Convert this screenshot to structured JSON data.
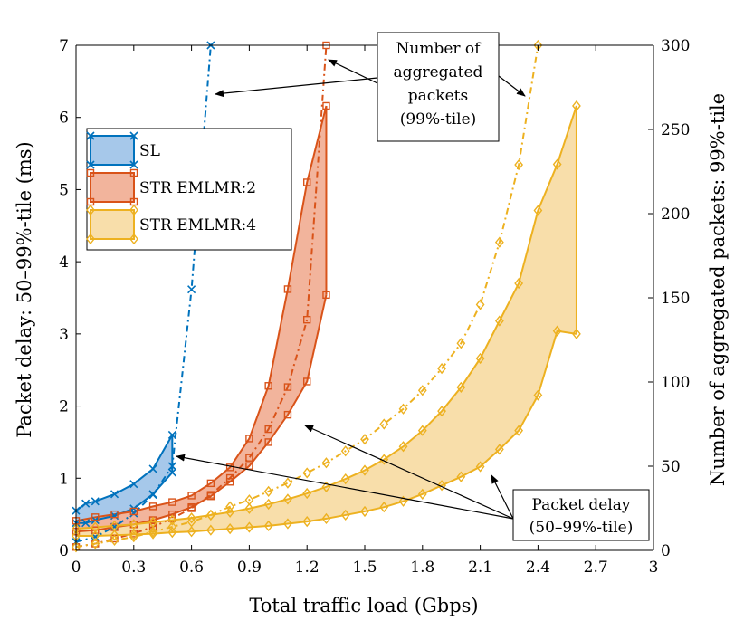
{
  "chart_data": {
    "type": "line",
    "xlabel": "Total traffic load (Gbps)",
    "ylabel_left": "Packet delay: 50–99%-tile (ms)",
    "ylabel_right": "Number of aggregated packets: 99%-tile",
    "xlim": [
      0,
      3
    ],
    "ylim_left": [
      0,
      7
    ],
    "ylim_right": [
      0,
      300
    ],
    "xticks": [
      "0",
      "0.3",
      "0.6",
      "0.9",
      "1.2",
      "1.5",
      "1.8",
      "2.1",
      "2.4",
      "2.7",
      "3"
    ],
    "yticks_left": [
      "0",
      "1",
      "2",
      "3",
      "4",
      "5",
      "6",
      "7"
    ],
    "yticks_right": [
      "0",
      "50",
      "100",
      "150",
      "200",
      "250",
      "300"
    ],
    "legend": [
      {
        "name": "SL",
        "color": "#0072bd",
        "fill": "#a6c8ea",
        "marker": "x"
      },
      {
        "name": "STR EMLMR:2",
        "color": "#d95319",
        "fill": "#f2b49c",
        "marker": "square"
      },
      {
        "name": "STR EMLMR:4",
        "color": "#edb120",
        "fill": "#f8deaa",
        "marker": "diamond"
      }
    ],
    "series": [
      {
        "name": "SL",
        "x": [
          0,
          0.05,
          0.1,
          0.2,
          0.3,
          0.4,
          0.5
        ],
        "delay_p50": [
          0.38,
          0.38,
          0.42,
          0.48,
          0.58,
          0.78,
          1.08
        ],
        "delay_p99": [
          0.55,
          0.65,
          0.68,
          0.78,
          0.92,
          1.13,
          1.6
        ],
        "agg_p99_x": [
          0,
          0.1,
          0.2,
          0.3,
          0.4,
          0.5,
          0.6,
          0.7
        ],
        "agg_p99": [
          5,
          8,
          14,
          22,
          33,
          50,
          155,
          300
        ]
      },
      {
        "name": "STR EMLMR:2",
        "x": [
          0,
          0.1,
          0.2,
          0.3,
          0.4,
          0.5,
          0.6,
          0.7,
          0.8,
          0.9,
          1.0,
          1.1,
          1.2,
          1.3
        ],
        "delay_p50": [
          0.26,
          0.28,
          0.32,
          0.36,
          0.42,
          0.5,
          0.6,
          0.75,
          0.95,
          1.17,
          1.5,
          1.88,
          2.34,
          3.54
        ],
        "delay_p99": [
          0.41,
          0.46,
          0.5,
          0.54,
          0.61,
          0.67,
          0.76,
          0.93,
          1.15,
          1.55,
          2.28,
          3.62,
          5.1,
          6.16
        ],
        "agg_p99_x": [
          0,
          0.1,
          0.2,
          0.3,
          0.4,
          0.5,
          0.6,
          0.7,
          0.8,
          0.9,
          1.0,
          1.1,
          1.2,
          1.3
        ],
        "agg_p99": [
          2,
          4,
          7,
          10,
          14,
          19,
          25,
          33,
          43,
          55,
          72,
          97,
          137,
          300
        ]
      },
      {
        "name": "STR EMLMR:4",
        "x": [
          0,
          0.1,
          0.2,
          0.3,
          0.4,
          0.5,
          0.6,
          0.7,
          0.8,
          0.9,
          1.0,
          1.1,
          1.2,
          1.3,
          1.4,
          1.5,
          1.6,
          1.7,
          1.8,
          1.9,
          2.0,
          2.1,
          2.2,
          2.3,
          2.4,
          2.5,
          2.6
        ],
        "delay_p50": [
          0.2,
          0.2,
          0.21,
          0.22,
          0.23,
          0.25,
          0.26,
          0.28,
          0.3,
          0.32,
          0.34,
          0.37,
          0.4,
          0.44,
          0.49,
          0.54,
          0.6,
          0.68,
          0.78,
          0.9,
          1.02,
          1.16,
          1.4,
          1.66,
          2.15,
          3.04,
          3.0
        ],
        "delay_p99": [
          0.3,
          0.32,
          0.34,
          0.36,
          0.39,
          0.42,
          0.45,
          0.49,
          0.53,
          0.58,
          0.64,
          0.71,
          0.79,
          0.88,
          0.99,
          1.11,
          1.26,
          1.44,
          1.66,
          1.93,
          2.26,
          2.66,
          3.18,
          3.7,
          4.71,
          5.35,
          6.16
        ],
        "agg_p99_x": [
          0,
          0.1,
          0.2,
          0.3,
          0.4,
          0.5,
          0.6,
          0.7,
          0.8,
          0.9,
          1.0,
          1.1,
          1.2,
          1.3,
          1.4,
          1.5,
          1.6,
          1.7,
          1.8,
          1.9,
          2.0,
          2.1,
          2.2,
          2.3,
          2.4
        ],
        "agg_p99": [
          2,
          4,
          6,
          8,
          11,
          14,
          17,
          21,
          26,
          30,
          35,
          40,
          46,
          52,
          59,
          66,
          75,
          84,
          95,
          108,
          123,
          146,
          183,
          229,
          300
        ]
      }
    ],
    "annotations": [
      {
        "id": "agg",
        "lines": [
          "Number of",
          "aggregated",
          "packets",
          "(99%-tile)"
        ]
      },
      {
        "id": "delay",
        "lines": [
          "Packet delay",
          "(50–99%-tile)"
        ]
      }
    ]
  }
}
